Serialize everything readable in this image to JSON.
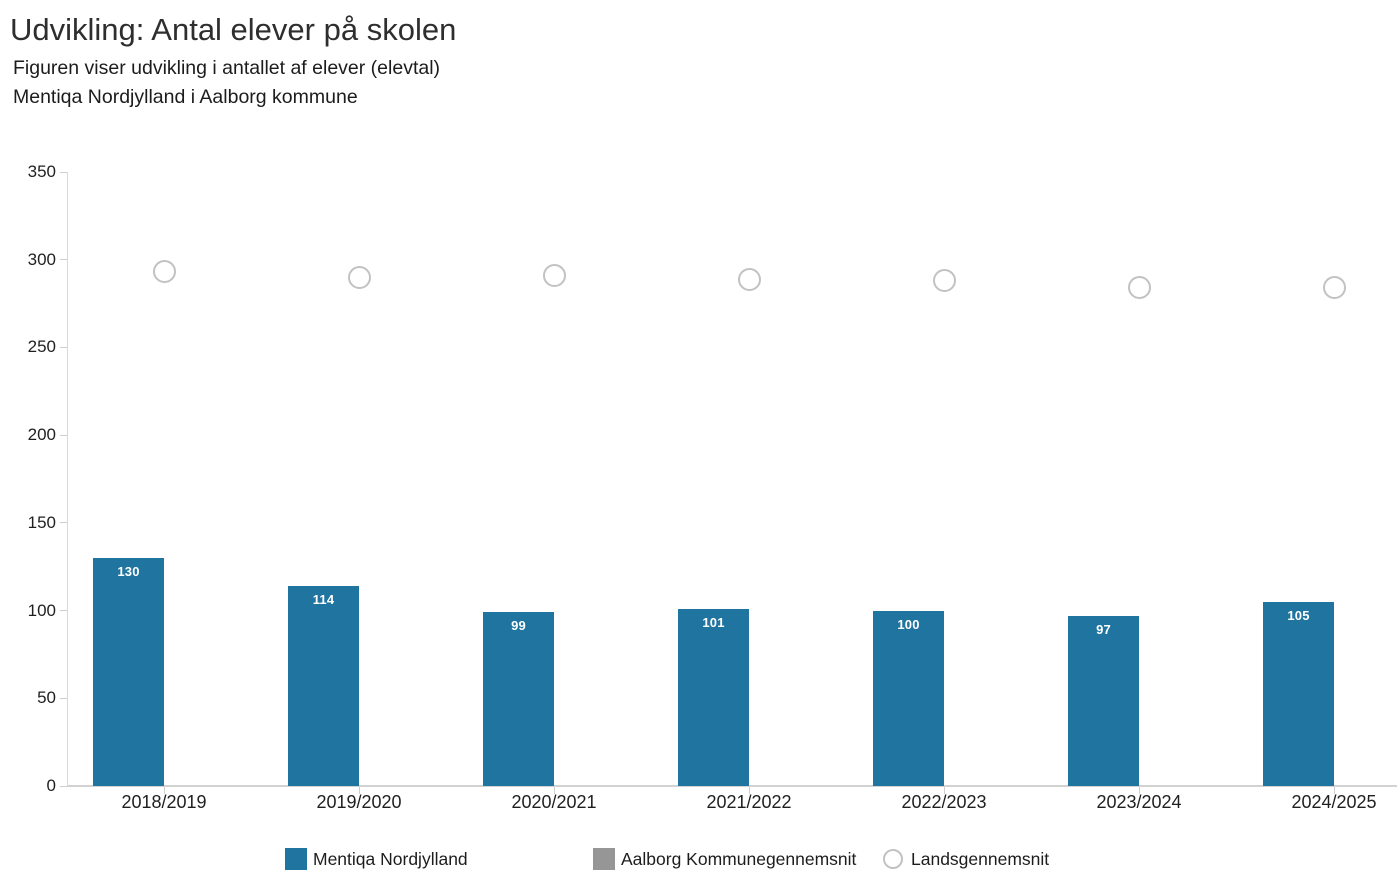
{
  "header": {
    "title": "Udvikling: Antal elever på skolen",
    "subtitle_line1": "Figuren viser udvikling i antallet af elever (elevtal)",
    "subtitle_line2": "Mentiqa Nordjylland i Aalborg kommune"
  },
  "chart_data": {
    "type": "bar",
    "title": "Udvikling: Antal elever på skolen",
    "subtitle": "Figuren viser udvikling i antallet af elever (elevtal) — Mentiqa Nordjylland i Aalborg kommune",
    "categories": [
      "2018/2019",
      "2019/2020",
      "2020/2021",
      "2021/2022",
      "2022/2023",
      "2023/2024",
      "2024/2025"
    ],
    "series": [
      {
        "name": "Mentiqa Nordjylland",
        "type": "bar",
        "color": "#2074A0",
        "values": [
          130,
          114,
          99,
          101,
          100,
          97,
          105
        ],
        "value_labels": "inside-top-white"
      },
      {
        "name": "Aalborg Kommunegennemsnit",
        "type": "bar",
        "color": "#969696",
        "values": [
          null,
          null,
          null,
          null,
          null,
          null,
          null
        ]
      },
      {
        "name": "Landsgennemsnit",
        "type": "scatter",
        "marker": "open-circle",
        "color": "#c2c2c2",
        "values": [
          293,
          290,
          291,
          289,
          288,
          284,
          284
        ]
      }
    ],
    "xlabel": "",
    "ylabel": "",
    "ylim": [
      0,
      350
    ],
    "ytick_step": 50,
    "grid": false,
    "legend_position": "bottom"
  }
}
